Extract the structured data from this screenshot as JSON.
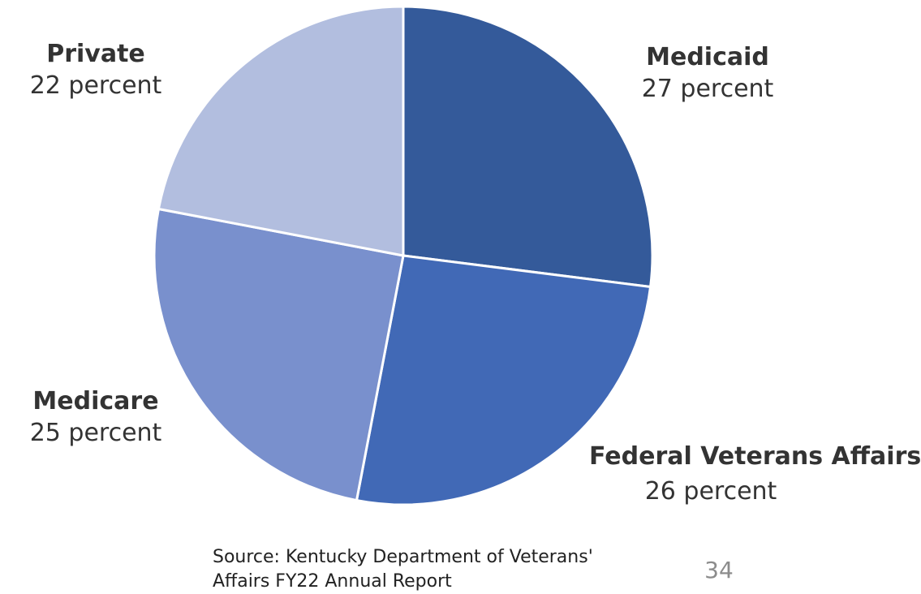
{
  "chart_data": {
    "type": "pie",
    "categories": [
      "Medicaid",
      "Federal Veterans Affairs",
      "Medicare",
      "Private"
    ],
    "values": [
      27,
      26,
      25,
      22
    ],
    "value_labels": [
      "27 percent",
      "26 percent",
      "25 percent",
      "22 percent"
    ],
    "colors": [
      "#345a9a",
      "#4169b6",
      "#7990cd",
      "#b2bedf"
    ],
    "unit": "percent",
    "start": "12 o'clock, clockwise",
    "legend": "none",
    "slice_border_color": "#ffffff"
  },
  "source_text": "Source: Kentucky Department of Veterans' Affairs FY22 Annual Report",
  "page_number": "34"
}
